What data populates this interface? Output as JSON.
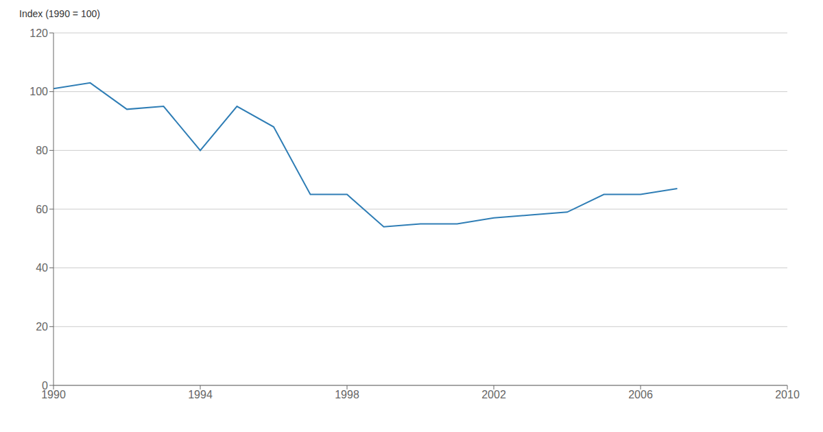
{
  "chart_data": {
    "type": "line",
    "x": [
      1990,
      1991,
      1992,
      1993,
      1994,
      1995,
      1996,
      1997,
      1998,
      1999,
      2000,
      2001,
      2002,
      2003,
      2004,
      2005,
      2006,
      2007
    ],
    "values": [
      101,
      103,
      94,
      95,
      80,
      95,
      88,
      65,
      65,
      54,
      55,
      55,
      57,
      58,
      59,
      65,
      65,
      67
    ],
    "color": "#2e7db5",
    "ylabel": "Index (1990 = 100)",
    "xlim": [
      1990,
      2010
    ],
    "ylim": [
      0,
      120
    ],
    "xticks": [
      1990,
      1994,
      1998,
      2002,
      2006,
      2010
    ],
    "yticks": [
      0,
      20,
      40,
      60,
      80,
      100,
      120
    ],
    "grid": true
  }
}
